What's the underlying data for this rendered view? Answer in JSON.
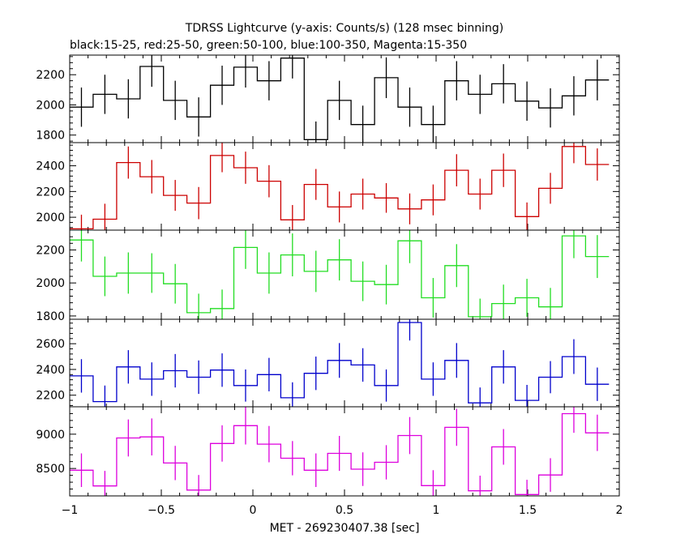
{
  "chart_data": {
    "type": "line",
    "title": "TDRSS Lightcurve (y-axis: Counts/s) (128 msec binning)",
    "subtitle": "black:15-25, red:25-50, green:50-100, blue:100-350, Magenta:15-350",
    "xlabel": "MET - 269230407.38 [sec]",
    "xlim": [
      -1,
      2
    ],
    "x_ticks": [
      -1,
      -0.5,
      0,
      0.5,
      1,
      1.5,
      2
    ],
    "x_tick_labels": [
      "−1",
      "−0.5",
      "0",
      "0.5",
      "1",
      "1.5",
      "2"
    ],
    "bin_width": 0.128,
    "bin_edges": [
      -1.0,
      -0.872,
      -0.744,
      -0.616,
      -0.488,
      -0.36,
      -0.232,
      -0.104,
      0.024,
      0.152,
      0.28,
      0.408,
      0.536,
      0.664,
      0.792,
      0.92,
      1.048,
      1.176,
      1.304,
      1.432,
      1.56,
      1.688,
      1.816,
      1.944
    ],
    "x_centers": [
      -0.936,
      -0.808,
      -0.68,
      -0.552,
      -0.424,
      -0.296,
      -0.168,
      -0.04,
      0.088,
      0.216,
      0.344,
      0.472,
      0.6,
      0.728,
      0.856,
      0.984,
      1.112,
      1.24,
      1.368,
      1.496,
      1.624,
      1.752,
      1.88
    ],
    "series": [
      {
        "name": "black:15-25",
        "color": "#000000",
        "ylim": [
          1750,
          2330
        ],
        "y_ticks": [
          1800,
          2000,
          2200
        ],
        "y_tick_labels": [
          "1800",
          "2000",
          "2200"
        ],
        "values": [
          1985,
          2070,
          2040,
          2255,
          2030,
          1920,
          2130,
          2250,
          2160,
          2310,
          1770,
          2030,
          1870,
          2180,
          1985,
          1870,
          2160,
          2070,
          2140,
          2025,
          1980,
          2060,
          2165
        ],
        "errors": [
          130,
          130,
          130,
          135,
          130,
          130,
          130,
          135,
          130,
          135,
          120,
          130,
          125,
          135,
          130,
          125,
          130,
          130,
          130,
          130,
          130,
          130,
          135
        ]
      },
      {
        "name": "red:25-50",
        "color": "#cc0000",
        "ylim": [
          1900,
          2580
        ],
        "y_ticks": [
          2000,
          2200,
          2400
        ],
        "y_tick_labels": [
          "2000",
          "2200",
          "2400"
        ],
        "values": [
          1910,
          1985,
          2425,
          2315,
          2170,
          2110,
          2480,
          2385,
          2280,
          1980,
          2255,
          2080,
          2180,
          2150,
          2065,
          2135,
          2365,
          2180,
          2365,
          2005,
          2225,
          2550,
          2410
        ],
        "errors": [
          110,
          120,
          125,
          130,
          120,
          125,
          130,
          125,
          125,
          115,
          120,
          120,
          120,
          115,
          120,
          120,
          125,
          120,
          130,
          110,
          120,
          130,
          125
        ]
      },
      {
        "name": "green:50-100",
        "color": "#22dd22",
        "ylim": [
          1780,
          2320
        ],
        "y_ticks": [
          1800,
          2000,
          2200
        ],
        "y_tick_labels": [
          "1800",
          "2000",
          "2200"
        ],
        "values": [
          2260,
          2040,
          2060,
          2060,
          1995,
          1820,
          1845,
          2215,
          2060,
          2170,
          2070,
          2140,
          2010,
          1990,
          2255,
          1910,
          2105,
          1795,
          1875,
          1910,
          1855,
          2285,
          2160
        ],
        "errors": [
          130,
          120,
          125,
          120,
          120,
          115,
          115,
          130,
          125,
          130,
          125,
          125,
          120,
          120,
          135,
          120,
          130,
          110,
          115,
          115,
          115,
          135,
          130
        ]
      },
      {
        "name": "blue:100-350",
        "color": "#0000cc",
        "ylim": [
          2110,
          2790
        ],
        "y_ticks": [
          2200,
          2400,
          2600
        ],
        "y_tick_labels": [
          "2200",
          "2400",
          "2600"
        ],
        "values": [
          2350,
          2150,
          2420,
          2325,
          2390,
          2340,
          2395,
          2275,
          2360,
          2180,
          2370,
          2470,
          2435,
          2275,
          2765,
          2325,
          2470,
          2140,
          2420,
          2160,
          2340,
          2500,
          2285
        ],
        "errors": [
          130,
          125,
          130,
          130,
          130,
          130,
          130,
          125,
          130,
          120,
          130,
          135,
          130,
          125,
          140,
          130,
          135,
          120,
          130,
          120,
          125,
          135,
          130
        ]
      },
      {
        "name": "Magenta:15-350",
        "color": "#dd00dd",
        "ylim": [
          8100,
          9400
        ],
        "y_ticks": [
          8500,
          9000
        ],
        "y_tick_labels": [
          "8500",
          "9000"
        ],
        "values": [
          8475,
          8245,
          8945,
          8960,
          8580,
          8185,
          8865,
          9125,
          8855,
          8650,
          8475,
          8720,
          8490,
          8590,
          8980,
          8250,
          9100,
          8175,
          8815,
          8120,
          8405,
          9300,
          9020
        ],
        "errors": [
          245,
          220,
          270,
          270,
          250,
          220,
          265,
          275,
          265,
          250,
          245,
          255,
          245,
          250,
          270,
          225,
          270,
          220,
          260,
          215,
          245,
          280,
          265
        ]
      }
    ],
    "grid": false,
    "legend": "none"
  }
}
